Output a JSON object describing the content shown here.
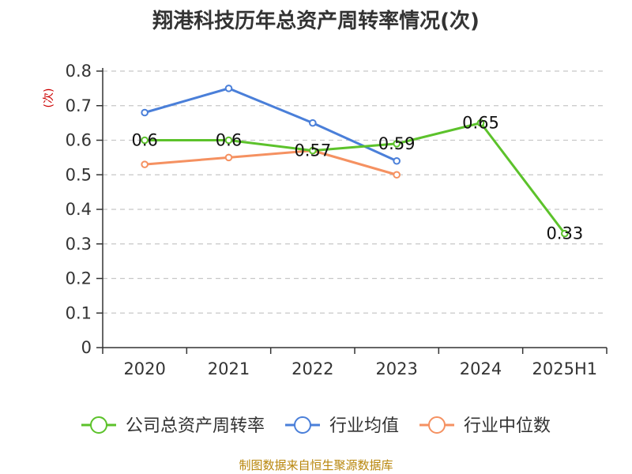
{
  "title": "翔港科技历年总资产周转率情况(次)",
  "source": "制图数据来自恒生聚源数据库",
  "chart_data": {
    "type": "line",
    "title": "翔港科技历年总资产周转率情况(次)",
    "ylabel": "(次)",
    "xlabel": "",
    "categories": [
      "2020",
      "2021",
      "2022",
      "2023",
      "2024",
      "2025H1"
    ],
    "ylim": [
      0,
      0.8
    ],
    "yticks": [
      "0",
      "0.1",
      "0.2",
      "0.3",
      "0.4",
      "0.5",
      "0.6",
      "0.7",
      "0.8"
    ],
    "grid": true,
    "legend_position": "bottom",
    "series": [
      {
        "name": "公司总资产周转率",
        "color": "#5cc22b",
        "values": [
          0.6,
          0.6,
          0.57,
          0.59,
          0.65,
          0.33
        ],
        "labels": [
          "0.6",
          "0.6",
          "0.57",
          "0.59",
          "0.65",
          "0.33"
        ]
      },
      {
        "name": "行业均值",
        "color": "#4a7fd9",
        "values": [
          0.68,
          0.75,
          0.65,
          0.54,
          null,
          null
        ]
      },
      {
        "name": "行业中位数",
        "color": "#f59161",
        "values": [
          0.53,
          0.55,
          0.57,
          0.5,
          null,
          null
        ]
      }
    ]
  }
}
